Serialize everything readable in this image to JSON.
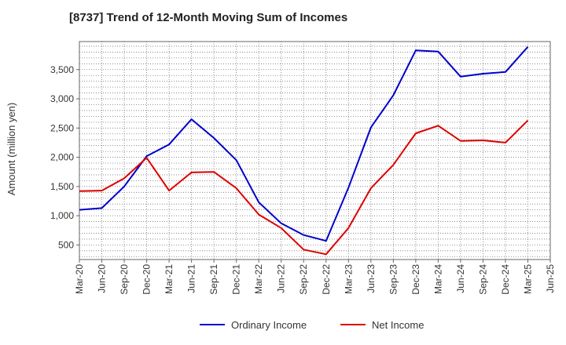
{
  "chart_data": {
    "type": "line",
    "title": "[8737]  Trend of 12-Month Moving Sum of Incomes",
    "xlabel": "",
    "ylabel": "Amount (million yen)",
    "categories": [
      "Mar-20",
      "Jun-20",
      "Sep-20",
      "Dec-20",
      "Mar-21",
      "Jun-21",
      "Sep-21",
      "Dec-21",
      "Mar-22",
      "Jun-22",
      "Sep-22",
      "Dec-22",
      "Mar-23",
      "Jun-23",
      "Sep-23",
      "Dec-23",
      "Mar-24",
      "Jun-24",
      "Sep-24",
      "Dec-24",
      "Mar-25",
      "Jun-25"
    ],
    "yticks": [
      500,
      1000,
      1500,
      2000,
      2500,
      3000,
      3500
    ],
    "ylim": [
      250,
      3980
    ],
    "grid": true,
    "legend_position": "bottom",
    "series": [
      {
        "name": "Ordinary Income",
        "color": "#0000cc",
        "values": [
          1100,
          1130,
          1500,
          2020,
          2220,
          2650,
          2330,
          1950,
          1230,
          870,
          670,
          570,
          1480,
          2510,
          3060,
          3830,
          3810,
          3380,
          3430,
          3460,
          3890,
          null
        ]
      },
      {
        "name": "Net Income",
        "color": "#dd0000",
        "values": [
          1420,
          1430,
          1640,
          1990,
          1430,
          1740,
          1750,
          1470,
          1020,
          790,
          420,
          340,
          790,
          1470,
          1870,
          2410,
          2540,
          2280,
          2290,
          2250,
          2630,
          null
        ]
      }
    ]
  }
}
